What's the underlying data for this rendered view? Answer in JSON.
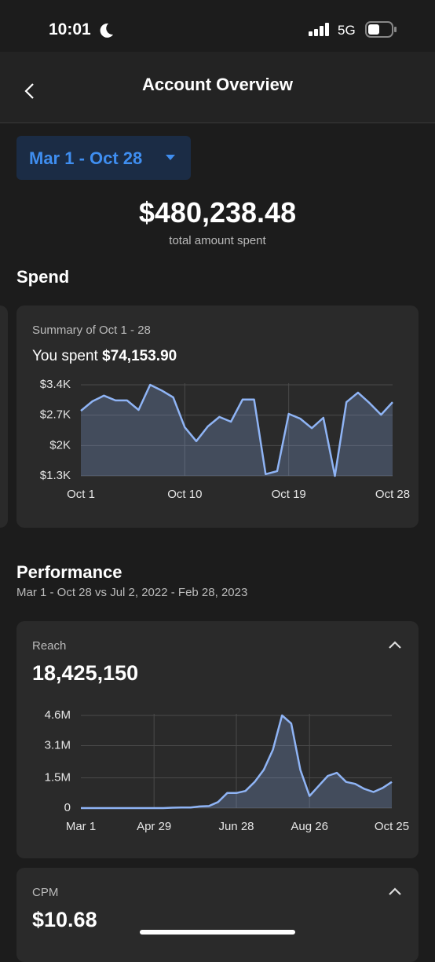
{
  "status": {
    "time": "10:01",
    "network": "5G"
  },
  "header": {
    "title": "Account Overview"
  },
  "date_range": "Mar 1 - Oct 28",
  "total": {
    "amount": "$480,238.48",
    "label": "total amount spent"
  },
  "spend": {
    "title": "Spend",
    "summary": "Summary of Oct 1 - 28",
    "spent_label": "You spent",
    "spent_amount": "$74,153.90",
    "chart_data": {
      "type": "area",
      "categories": [
        "Oct 1",
        null,
        null,
        null,
        null,
        null,
        null,
        null,
        null,
        "Oct 10",
        null,
        null,
        null,
        null,
        null,
        null,
        null,
        null,
        "Oct 19",
        null,
        null,
        null,
        null,
        null,
        null,
        null,
        null,
        "Oct 28"
      ],
      "values": [
        2800,
        3020,
        3150,
        3040,
        3040,
        2820,
        3400,
        3270,
        3110,
        2420,
        2100,
        2440,
        2660,
        2550,
        3060,
        3060,
        1340,
        1410,
        2730,
        2620,
        2400,
        2640,
        1300,
        3000,
        3220,
        2980,
        2710,
        3000
      ],
      "color": "#8fb4f5",
      "ylim": [
        1300,
        3400
      ],
      "yticks": [
        {
          "value": 1300,
          "label": "$1.3K"
        },
        {
          "value": 2000,
          "label": "$2K"
        },
        {
          "value": 2700,
          "label": "$2.7K"
        },
        {
          "value": 3400,
          "label": "$3.4K"
        }
      ],
      "grid": true
    }
  },
  "performance": {
    "title": "Performance",
    "subtitle": "Mar 1 - Oct 28 vs Jul 2, 2022 - Feb 28, 2023",
    "reach": {
      "label": "Reach",
      "value": "18,425,150",
      "chart_data": {
        "type": "area",
        "categories": [
          "Mar 1",
          null,
          null,
          null,
          null,
          null,
          null,
          null,
          "Apr 29",
          null,
          null,
          null,
          null,
          null,
          null,
          null,
          null,
          "Jun 28",
          null,
          null,
          null,
          null,
          null,
          null,
          null,
          "Aug 26",
          null,
          null,
          null,
          null,
          null,
          null,
          null,
          null,
          "Oct 25"
        ],
        "values": [
          0,
          0,
          0,
          0,
          0,
          0,
          0,
          0,
          0,
          0,
          20000,
          30000,
          30000,
          80000,
          100000,
          300000,
          750000,
          750000,
          850000,
          1300000,
          1900000,
          2900000,
          4600000,
          4200000,
          1900000,
          600000,
          1100000,
          1600000,
          1750000,
          1300000,
          1200000,
          950000,
          800000,
          1000000,
          1300000
        ],
        "color": "#8fb4f5",
        "ylim": [
          0,
          4600000
        ],
        "yticks": [
          0,
          {
            "value": 1500000,
            "label": "1.5M"
          },
          {
            "value": 3100000,
            "label": "3.1M"
          },
          {
            "value": 4600000,
            "label": "4.6M"
          }
        ],
        "grid": true
      }
    },
    "cpm": {
      "label": "CPM",
      "value": "$10.68"
    }
  }
}
